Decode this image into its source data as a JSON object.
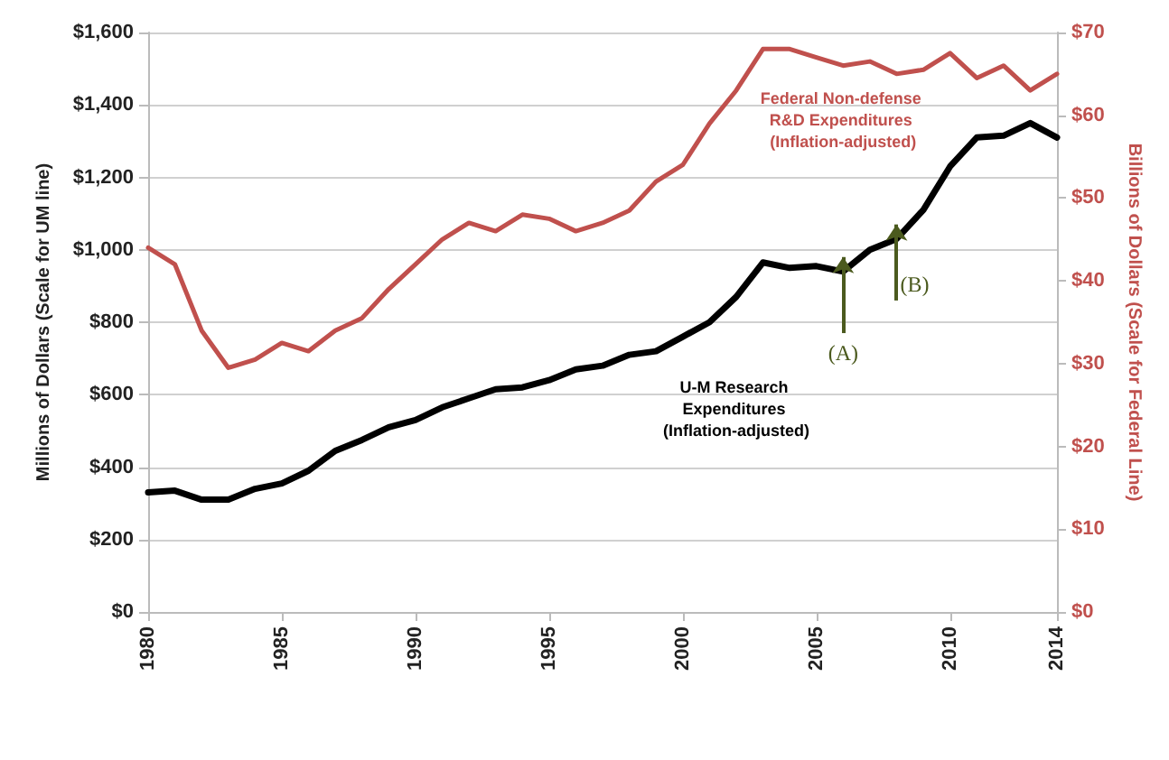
{
  "chart_data": {
    "type": "line",
    "ylabel": "Millions of Dollars (Scale for UM line)",
    "y2label": "Billions of Dollars (Scale for Federal Line)",
    "x": [
      1980,
      1981,
      1982,
      1983,
      1984,
      1985,
      1986,
      1987,
      1988,
      1989,
      1990,
      1991,
      1992,
      1993,
      1994,
      1995,
      1996,
      1997,
      1998,
      1999,
      2000,
      2001,
      2002,
      2003,
      2004,
      2005,
      2006,
      2007,
      2008,
      2009,
      2010,
      2011,
      2012,
      2013,
      2014
    ],
    "series": [
      {
        "name": "U-M Research Expenditures (Inflation-adjusted)",
        "color": "#000000",
        "values": [
          330,
          335,
          310,
          310,
          340,
          355,
          390,
          445,
          475,
          510,
          530,
          565,
          590,
          615,
          620,
          640,
          670,
          680,
          710,
          720,
          760,
          800,
          870,
          965,
          950,
          955,
          940,
          1000,
          1030,
          1110,
          1230,
          1310,
          1315,
          1350,
          1310
        ]
      },
      {
        "name": "Federal Non-defense R&D Expenditures (Inflation-adjusted)",
        "color": "#c0504d",
        "axis": "y2",
        "values": [
          44,
          42,
          34,
          29.5,
          30.5,
          32.5,
          31.5,
          34,
          35.5,
          39,
          42,
          45,
          47,
          46,
          48,
          47.5,
          46,
          47,
          48.5,
          52,
          54,
          59,
          63,
          68,
          68,
          67,
          66,
          66.5,
          65,
          65.5,
          67.5,
          64.5,
          66,
          63,
          65
        ]
      }
    ],
    "annotations": [
      {
        "text": "(A)",
        "x": 2006,
        "y": 940
      },
      {
        "text": "(B)",
        "x": 2008,
        "y": 1030
      }
    ],
    "xlim": [
      1980,
      2014
    ],
    "xticks": [
      1980,
      1985,
      1990,
      1995,
      2000,
      2005,
      2010,
      2014
    ],
    "ylim": [
      0,
      1600
    ],
    "yticks": [
      {
        "value": 0,
        "label": "$0"
      },
      {
        "value": 200,
        "label": "$200"
      },
      {
        "value": 400,
        "label": "$400"
      },
      {
        "value": 600,
        "label": "$600"
      },
      {
        "value": 800,
        "label": "$800"
      },
      {
        "value": 1000,
        "label": "$1,000"
      },
      {
        "value": 1200,
        "label": "$1,200"
      },
      {
        "value": 1400,
        "label": "$1,400"
      },
      {
        "value": 1600,
        "label": "$1,600"
      }
    ],
    "y2lim": [
      0,
      70
    ],
    "y2ticks": [
      {
        "value": 0,
        "label": "$0"
      },
      {
        "value": 10,
        "label": "$10"
      },
      {
        "value": 20,
        "label": "$20"
      },
      {
        "value": 30,
        "label": "$30"
      },
      {
        "value": 40,
        "label": "$40"
      },
      {
        "value": 50,
        "label": "$50"
      },
      {
        "value": 60,
        "label": "$60"
      },
      {
        "value": 70,
        "label": "$70"
      }
    ],
    "grid": "y",
    "legend": false,
    "marker": "none",
    "line_style": "solid"
  }
}
